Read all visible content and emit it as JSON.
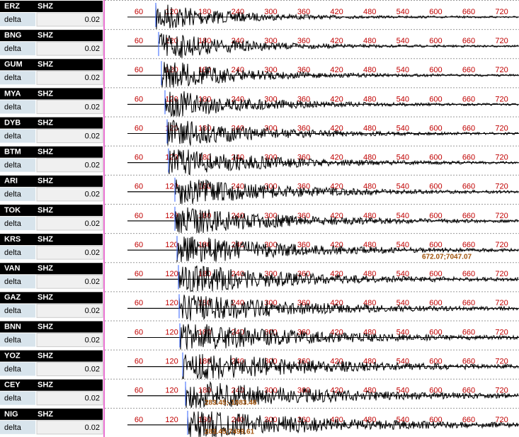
{
  "axis_ticks": [
    60,
    120,
    180,
    240,
    300,
    360,
    420,
    480,
    540,
    600,
    660,
    720
  ],
  "rows": [
    {
      "station": "ERZ",
      "channel": "SHZ",
      "param": "delta",
      "param_value": "0.02"
    },
    {
      "station": "BNG",
      "channel": "SHZ",
      "param": "delta",
      "param_value": "0.02"
    },
    {
      "station": "GUM",
      "channel": "SHZ",
      "param": "delta",
      "param_value": "0.02"
    },
    {
      "station": "MYA",
      "channel": "SHZ",
      "param": "delta",
      "param_value": "0.02"
    },
    {
      "station": "DYB",
      "channel": "SHZ",
      "param": "delta",
      "param_value": "0.02"
    },
    {
      "station": "BTM",
      "channel": "SHZ",
      "param": "delta",
      "param_value": "0.02"
    },
    {
      "station": "ARI",
      "channel": "SHZ",
      "param": "delta",
      "param_value": "0.02"
    },
    {
      "station": "TOK",
      "channel": "SHZ",
      "param": "delta",
      "param_value": "0.02"
    },
    {
      "station": "KRS",
      "channel": "SHZ",
      "param": "delta",
      "param_value": "0.02",
      "annotation": "672.07;7047.07"
    },
    {
      "station": "VAN",
      "channel": "SHZ",
      "param": "delta",
      "param_value": "0.02"
    },
    {
      "station": "GAZ",
      "channel": "SHZ",
      "param": "delta",
      "param_value": "0.02"
    },
    {
      "station": "BNN",
      "channel": "SHZ",
      "param": "delta",
      "param_value": "0.02"
    },
    {
      "station": "YOZ",
      "channel": "SHZ",
      "param": "delta",
      "param_value": "0.02"
    },
    {
      "station": "CEY",
      "channel": "SHZ",
      "param": "delta",
      "param_value": "0.02",
      "annotation": "283.45;-1083.46"
    },
    {
      "station": "NIG",
      "channel": "SHZ",
      "param": "delta",
      "param_value": "0.02",
      "annotation": "283.45;7499.61"
    }
  ]
}
